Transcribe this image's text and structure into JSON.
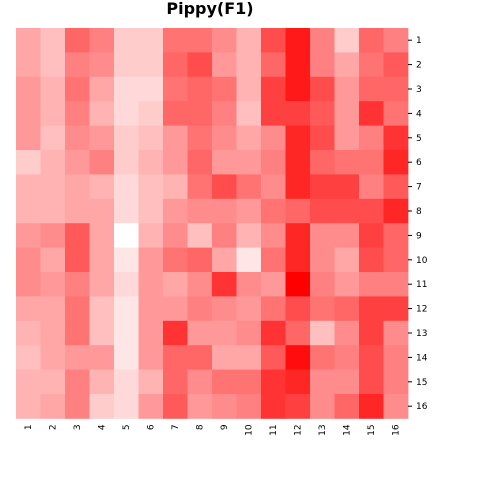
{
  "chart_data": {
    "type": "heatmap",
    "title": "Pippy(F1)",
    "xlabel": "",
    "ylabel": "",
    "x_categories": [
      "1",
      "2",
      "3",
      "4",
      "5",
      "6",
      "7",
      "8",
      "9",
      "10",
      "11",
      "12",
      "13",
      "14",
      "15",
      "16"
    ],
    "y_categories": [
      "1",
      "2",
      "3",
      "4",
      "5",
      "6",
      "7",
      "8",
      "9",
      "10",
      "11",
      "12",
      "13",
      "14",
      "15",
      "16"
    ],
    "color_scale": {
      "low": "#ffffff",
      "high": "#ff0000"
    },
    "value_range": [
      0,
      1
    ],
    "grid": false,
    "legend": "none",
    "values": [
      [
        0.35,
        0.25,
        0.6,
        0.5,
        0.2,
        0.2,
        0.55,
        0.55,
        0.45,
        0.3,
        0.7,
        0.9,
        0.5,
        0.2,
        0.6,
        0.5
      ],
      [
        0.35,
        0.25,
        0.5,
        0.45,
        0.2,
        0.2,
        0.6,
        0.7,
        0.4,
        0.3,
        0.6,
        0.9,
        0.5,
        0.35,
        0.55,
        0.65
      ],
      [
        0.4,
        0.3,
        0.55,
        0.35,
        0.15,
        0.15,
        0.55,
        0.6,
        0.55,
        0.3,
        0.75,
        0.9,
        0.7,
        0.4,
        0.6,
        0.6
      ],
      [
        0.4,
        0.3,
        0.5,
        0.3,
        0.15,
        0.2,
        0.6,
        0.6,
        0.5,
        0.25,
        0.75,
        0.75,
        0.65,
        0.4,
        0.8,
        0.55
      ],
      [
        0.4,
        0.25,
        0.45,
        0.4,
        0.2,
        0.25,
        0.4,
        0.55,
        0.45,
        0.35,
        0.45,
        0.85,
        0.7,
        0.4,
        0.5,
        0.8
      ],
      [
        0.2,
        0.3,
        0.4,
        0.5,
        0.2,
        0.3,
        0.4,
        0.6,
        0.4,
        0.4,
        0.5,
        0.85,
        0.6,
        0.55,
        0.55,
        0.85
      ],
      [
        0.3,
        0.3,
        0.35,
        0.3,
        0.15,
        0.25,
        0.3,
        0.55,
        0.7,
        0.55,
        0.45,
        0.85,
        0.75,
        0.75,
        0.5,
        0.65
      ],
      [
        0.3,
        0.3,
        0.35,
        0.35,
        0.15,
        0.25,
        0.4,
        0.45,
        0.45,
        0.4,
        0.55,
        0.6,
        0.7,
        0.7,
        0.7,
        0.85
      ],
      [
        0.4,
        0.45,
        0.65,
        0.35,
        0.0,
        0.3,
        0.45,
        0.25,
        0.5,
        0.3,
        0.45,
        0.85,
        0.45,
        0.45,
        0.75,
        0.6
      ],
      [
        0.45,
        0.35,
        0.65,
        0.35,
        0.1,
        0.4,
        0.55,
        0.6,
        0.35,
        0.1,
        0.55,
        0.85,
        0.45,
        0.35,
        0.7,
        0.6
      ],
      [
        0.45,
        0.4,
        0.5,
        0.35,
        0.15,
        0.4,
        0.35,
        0.45,
        0.8,
        0.45,
        0.4,
        1.0,
        0.5,
        0.4,
        0.5,
        0.5
      ],
      [
        0.35,
        0.35,
        0.55,
        0.25,
        0.1,
        0.4,
        0.4,
        0.5,
        0.45,
        0.4,
        0.55,
        0.7,
        0.55,
        0.6,
        0.75,
        0.75
      ],
      [
        0.3,
        0.35,
        0.55,
        0.25,
        0.1,
        0.4,
        0.8,
        0.4,
        0.4,
        0.45,
        0.8,
        0.6,
        0.25,
        0.45,
        0.75,
        0.45
      ],
      [
        0.25,
        0.35,
        0.4,
        0.4,
        0.1,
        0.4,
        0.6,
        0.6,
        0.35,
        0.35,
        0.65,
        0.95,
        0.55,
        0.5,
        0.7,
        0.5
      ],
      [
        0.3,
        0.3,
        0.5,
        0.3,
        0.15,
        0.3,
        0.6,
        0.45,
        0.55,
        0.55,
        0.8,
        0.85,
        0.45,
        0.45,
        0.7,
        0.5
      ],
      [
        0.3,
        0.35,
        0.5,
        0.2,
        0.15,
        0.4,
        0.65,
        0.4,
        0.45,
        0.5,
        0.8,
        0.75,
        0.45,
        0.6,
        0.85,
        0.45
      ]
    ]
  }
}
